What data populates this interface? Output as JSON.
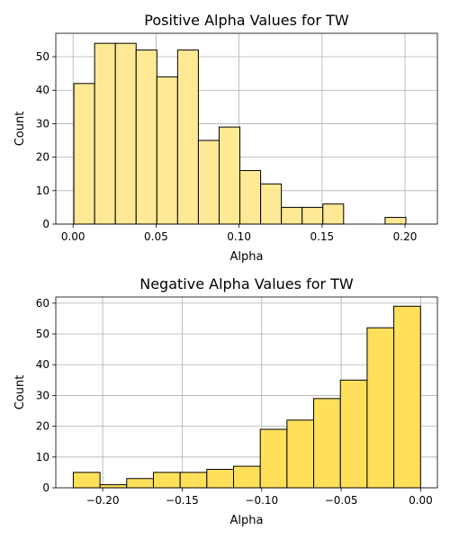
{
  "chart_data": [
    {
      "type": "bar",
      "title": "Positive Alpha Values for TW",
      "xlabel": "Alpha",
      "ylabel": "Count",
      "xlim": [
        -0.0104,
        0.2195
      ],
      "ylim": [
        0,
        57
      ],
      "xticks": [
        0.0,
        0.05,
        0.1,
        0.15,
        0.2
      ],
      "xtick_labels": [
        "0.00",
        "0.05",
        "0.10",
        "0.15",
        "0.20"
      ],
      "yticks": [
        0,
        10,
        20,
        30,
        40,
        50
      ],
      "ytick_labels": [
        "0",
        "10",
        "20",
        "30",
        "40",
        "50"
      ],
      "grid": true,
      "bar_color": "#ffe994",
      "edge_color": "#000000",
      "bin_edges": [
        0.0005,
        0.013,
        0.0255,
        0.038,
        0.0505,
        0.063,
        0.0755,
        0.088,
        0.1005,
        0.113,
        0.1255,
        0.138,
        0.1505,
        0.163,
        0.1755,
        0.188,
        0.2005,
        0.213
      ],
      "values": [
        42,
        54,
        54,
        52,
        44,
        52,
        25,
        29,
        16,
        12,
        5,
        5,
        6,
        0,
        0,
        2,
        0
      ]
    },
    {
      "type": "bar",
      "title": "Negative Alpha Values for TW",
      "xlabel": "Alpha",
      "ylabel": "Count",
      "xlim": [
        -0.2295,
        0.0105
      ],
      "ylim": [
        0,
        62
      ],
      "xticks": [
        -0.2,
        -0.15,
        -0.1,
        -0.05,
        0.0
      ],
      "xtick_labels": [
        "−0.20",
        "−0.15",
        "−0.10",
        "−0.05",
        "0.00"
      ],
      "yticks": [
        0,
        10,
        20,
        30,
        40,
        50,
        60
      ],
      "ytick_labels": [
        "0",
        "10",
        "20",
        "30",
        "40",
        "50",
        "60"
      ],
      "grid": true,
      "bar_color": "#ffe05a",
      "edge_color": "#000000",
      "bin_edges": [
        -0.2185,
        -0.2017,
        -0.1849,
        -0.1681,
        -0.1513,
        -0.1345,
        -0.1177,
        -0.1009,
        -0.0841,
        -0.0673,
        -0.0505,
        -0.0337,
        -0.0169,
        -0.0001
      ],
      "values": [
        5,
        1,
        3,
        5,
        5,
        6,
        7,
        19,
        22,
        29,
        35,
        52,
        59
      ]
    }
  ]
}
